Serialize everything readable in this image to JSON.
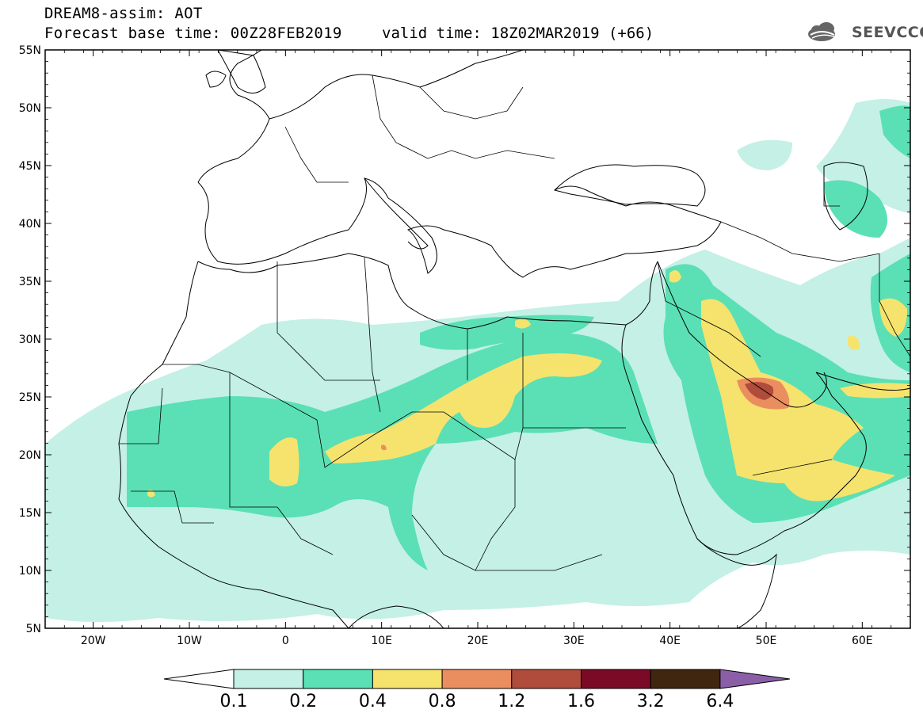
{
  "header": {
    "title": "DREAM8-assim: AOT",
    "base_time": "Forecast base time: 00Z28FEB2019",
    "valid_time": "valid time: 18Z02MAR2019 (+66)",
    "logo_text": "SEEVCCC",
    "logo_icon": "cloud-logo-icon"
  },
  "map": {
    "lat_labels": [
      "55N",
      "50N",
      "45N",
      "40N",
      "35N",
      "30N",
      "25N",
      "20N",
      "15N",
      "10N",
      "5N"
    ],
    "lat_values": [
      55,
      50,
      45,
      40,
      35,
      30,
      25,
      20,
      15,
      10,
      5
    ],
    "lon_labels": [
      "20W",
      "10W",
      "0",
      "10E",
      "20E",
      "30E",
      "40E",
      "50E",
      "60E"
    ],
    "lon_values": [
      -20,
      -10,
      0,
      10,
      20,
      30,
      40,
      50,
      60
    ],
    "lon_range": [
      -25,
      65
    ],
    "lat_range": [
      5,
      55
    ],
    "variable": "Aerosol Optical Thickness"
  },
  "colorbar": {
    "levels": [
      "0.1",
      "0.2",
      "0.4",
      "0.8",
      "1.2",
      "1.6",
      "3.2",
      "6.4"
    ],
    "colors": [
      "#c4f0e6",
      "#5ae0b4",
      "#f5e36e",
      "#eb8e5f",
      "#b04c3c",
      "#7a0a26",
      "#40250f",
      "#8a5fa8"
    ],
    "under_color": "#ffffff"
  }
}
